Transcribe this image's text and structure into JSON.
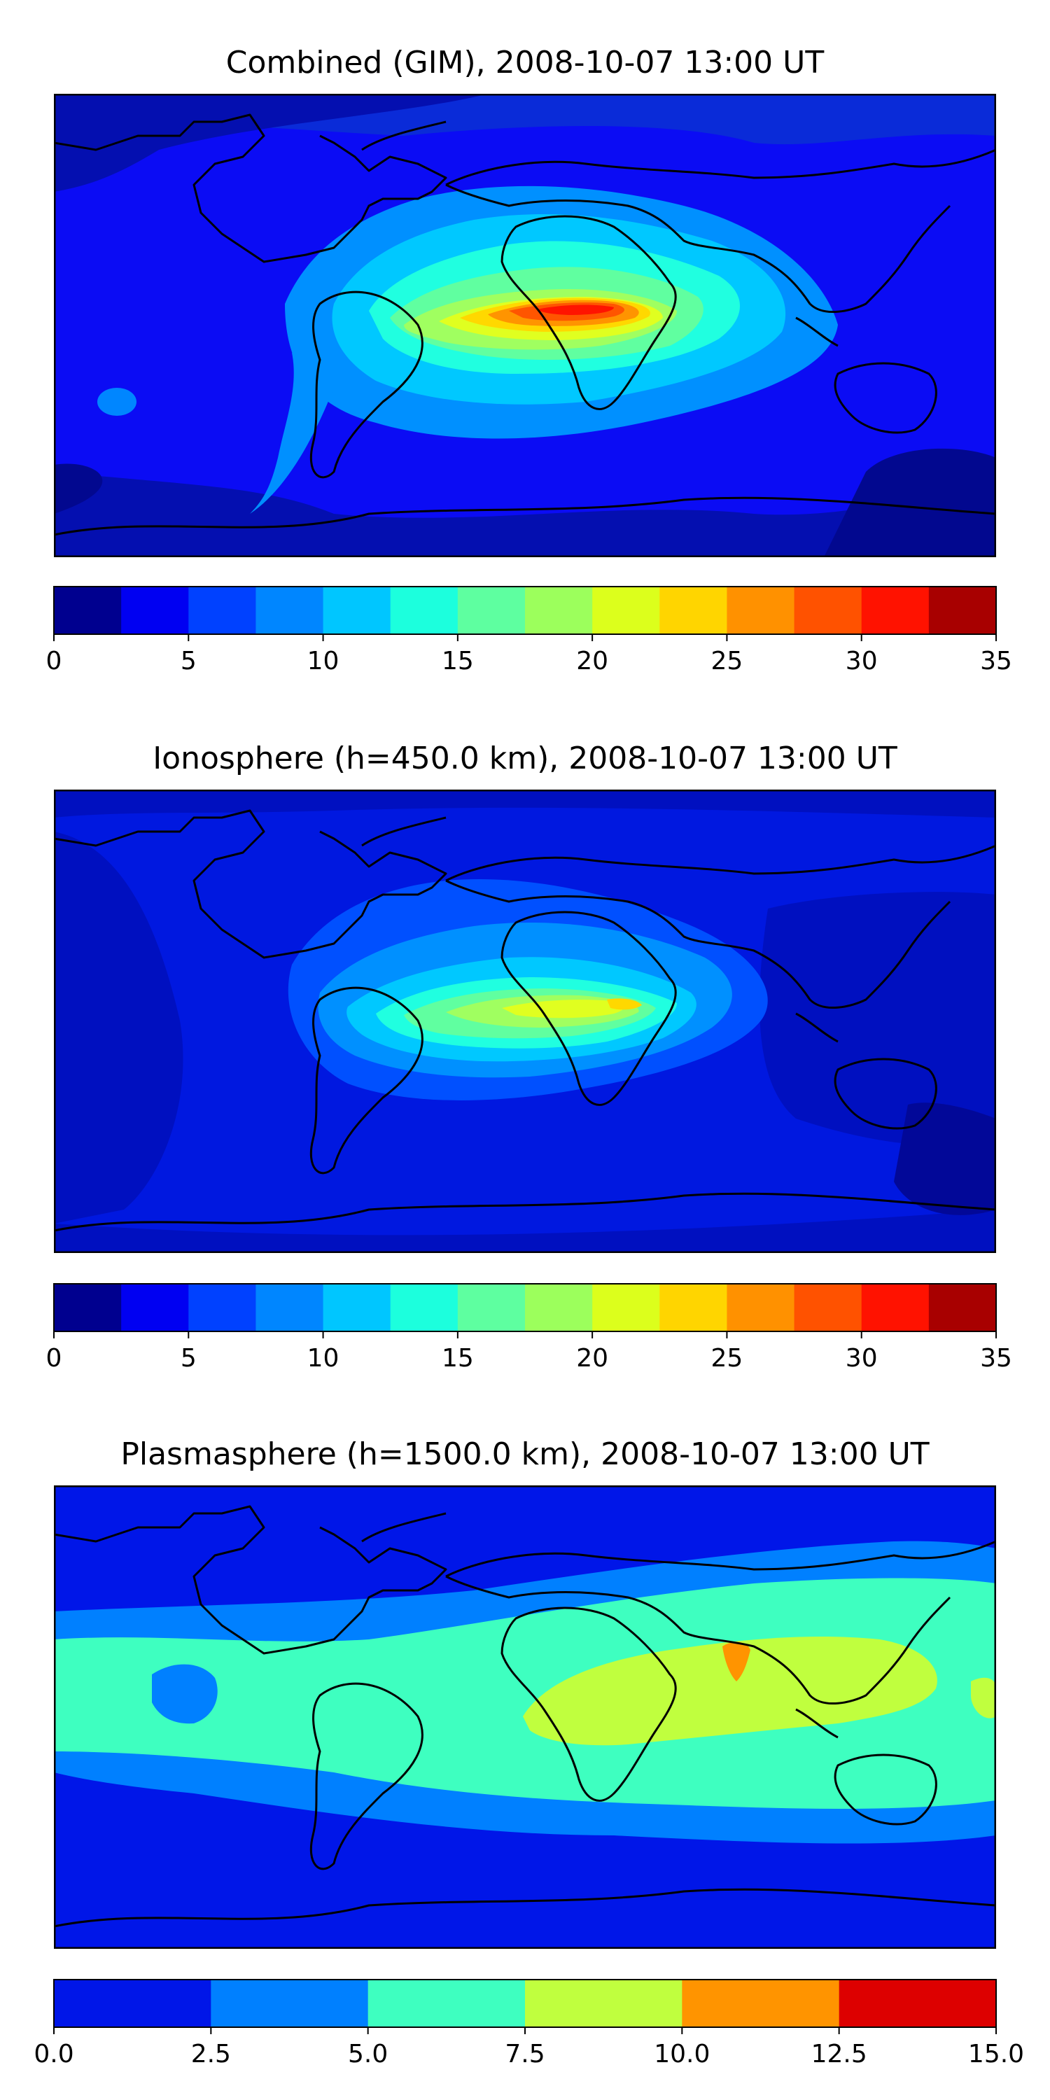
{
  "figure": {
    "panels": [
      {
        "id": "combined",
        "title": "Combined (GIM), 2008-10-07 13:00 UT",
        "base_color": "#0b0cf4",
        "colorbar": {
          "ticks": [
            "0",
            "5",
            "10",
            "15",
            "20",
            "25",
            "30",
            "35"
          ],
          "colors": [
            "#00008f",
            "#0000f2",
            "#0041ff",
            "#0086ff",
            "#00c6ff",
            "#1cffdd",
            "#5effa0",
            "#9cff5c",
            "#dcff1c",
            "#ffd500",
            "#ff9100",
            "#ff5200",
            "#ff1200",
            "#a80000"
          ]
        }
      },
      {
        "id": "ionosphere",
        "title": "Ionosphere  (h=450.0 km), 2008-10-07 13:00 UT",
        "base_color": "#0018e0",
        "colorbar": {
          "ticks": [
            "0",
            "5",
            "10",
            "15",
            "20",
            "25",
            "30",
            "35"
          ],
          "colors": [
            "#00008f",
            "#0000f2",
            "#0041ff",
            "#0086ff",
            "#00c6ff",
            "#1cffdd",
            "#5effa0",
            "#9cff5c",
            "#dcff1c",
            "#ffd500",
            "#ff9100",
            "#ff5200",
            "#ff1200",
            "#a80000"
          ]
        }
      },
      {
        "id": "plasmasphere",
        "title": "Plasmasphere (h=1500.0 km), 2008-10-07 13:00 UT",
        "base_color": "#0016e8",
        "colorbar": {
          "ticks": [
            "0.0",
            "2.5",
            "5.0",
            "7.5",
            "10.0",
            "12.5",
            "15.0"
          ],
          "colors": [
            "#0016e8",
            "#0080ff",
            "#3effc0",
            "#c0ff3e",
            "#ff9400",
            "#dd0000"
          ]
        }
      }
    ]
  }
}
